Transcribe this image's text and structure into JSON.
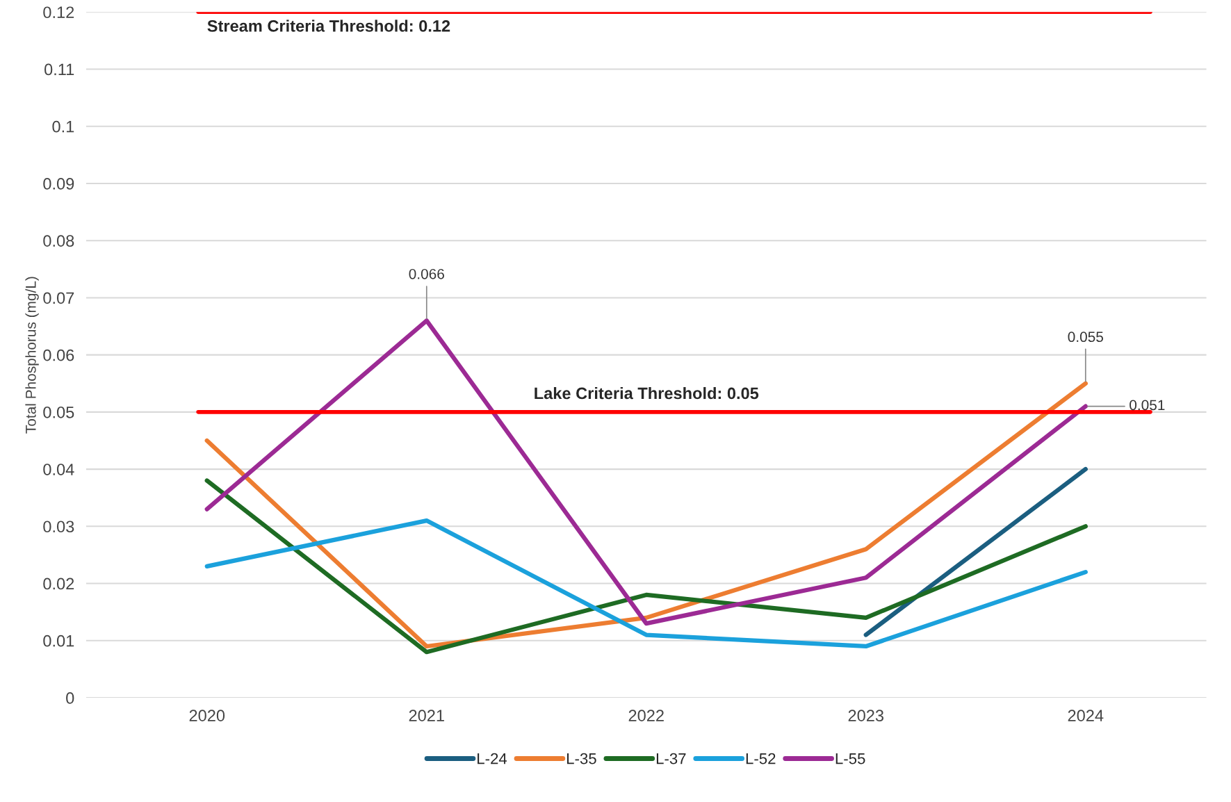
{
  "chart_data": {
    "type": "line",
    "ylabel": "Total Phosphorus (mg/L)",
    "categories": [
      "2020",
      "2021",
      "2022",
      "2023",
      "2024"
    ],
    "series": [
      {
        "name": "L-24",
        "color": "#1b5e80",
        "values": [
          null,
          null,
          null,
          0.011,
          0.04
        ]
      },
      {
        "name": "L-35",
        "color": "#ed7d31",
        "values": [
          0.045,
          0.009,
          0.014,
          0.026,
          0.055
        ],
        "value_labels": [
          null,
          null,
          null,
          null,
          "0.055"
        ]
      },
      {
        "name": "L-37",
        "color": "#1e6b23",
        "values": [
          0.038,
          0.008,
          0.018,
          0.014,
          0.03
        ]
      },
      {
        "name": "L-52",
        "color": "#1ba1dc",
        "values": [
          0.023,
          0.031,
          0.011,
          0.009,
          0.022
        ]
      },
      {
        "name": "L-55",
        "color": "#9c2a94",
        "values": [
          0.033,
          0.066,
          0.013,
          0.021,
          0.051
        ],
        "value_labels": [
          null,
          "0.066",
          null,
          null,
          "0.051"
        ]
      }
    ],
    "ylim": [
      0,
      0.12
    ],
    "yticks": [
      0,
      0.01,
      0.02,
      0.03,
      0.04,
      0.05,
      0.06,
      0.07,
      0.08,
      0.09,
      0.1,
      0.11,
      0.12
    ],
    "ref_lines": [
      {
        "axis": "y",
        "value": 0.12,
        "label": "Stream Criteria Threshold: 0.12",
        "color": "#ff0000"
      },
      {
        "axis": "y",
        "value": 0.05,
        "label": "Lake Criteria Threshold: 0.05",
        "color": "#ff0000"
      }
    ],
    "grid": "y",
    "legend": "bottom",
    "marker": "none",
    "line_style": "solid"
  }
}
